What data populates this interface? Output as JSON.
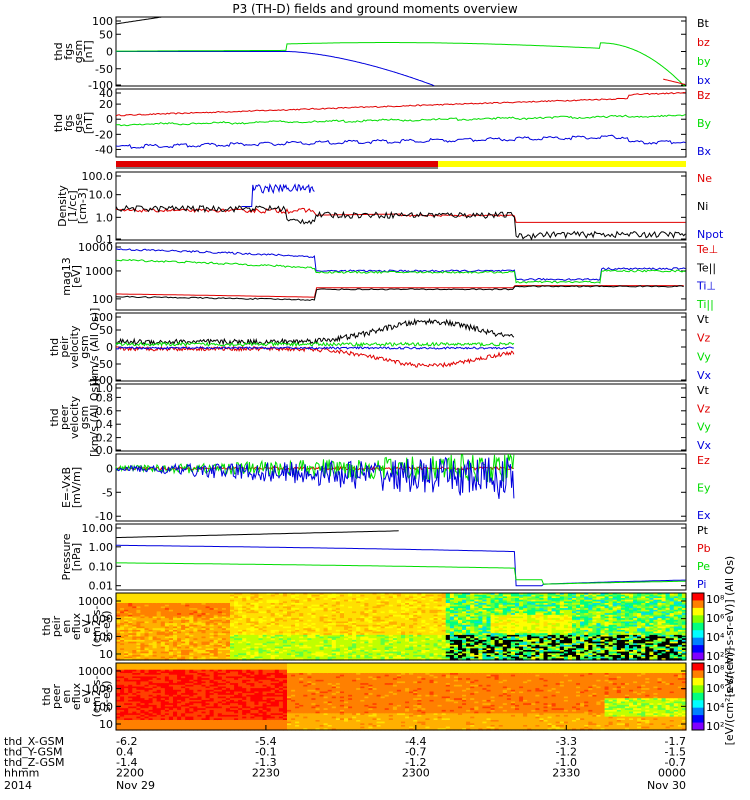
{
  "title": "P3 (TH-D) fields and ground moments overview",
  "colors": {
    "black": "#000000",
    "red": "#e00000",
    "green": "#00dd00",
    "blue": "#0000dd",
    "yellow": "#ffff00"
  },
  "chart_data": [
    {
      "type": "line",
      "id": "fgs_gsm",
      "ylabel": [
        "thd",
        "fgs",
        "gsm",
        "[nT]"
      ],
      "yticks": [
        "100",
        "50",
        "0",
        "-50",
        "-100"
      ],
      "ylim": [
        -100,
        100
      ],
      "series": [
        {
          "name": "Bt",
          "color": "black"
        },
        {
          "name": "bz",
          "color": "red"
        },
        {
          "name": "by",
          "color": "green"
        },
        {
          "name": "bx",
          "color": "blue"
        }
      ]
    },
    {
      "type": "line",
      "id": "fgs_dsl",
      "ylabel": [
        "thd",
        "fgs",
        "gse",
        "[nT]"
      ],
      "yticks": [
        "40",
        "20",
        "0",
        "-20",
        "-40"
      ],
      "ylim": [
        -50,
        40
      ],
      "series": [
        {
          "name": "Bz",
          "color": "red"
        },
        {
          "name": "By",
          "color": "green"
        },
        {
          "name": "Bx",
          "color": "blue"
        }
      ]
    },
    {
      "type": "bar",
      "id": "mode_bar",
      "segments": [
        {
          "from": 0,
          "to": 0.565,
          "color": "red"
        },
        {
          "from": 0.565,
          "to": 1,
          "color": "yellow"
        }
      ]
    },
    {
      "type": "line",
      "id": "density",
      "ylabel": [
        "Density",
        "[1/cc]",
        "[cm-3]"
      ],
      "yticks": [
        "100.0",
        "10.0",
        "1.0",
        "0.1"
      ],
      "ylim": [
        0.1,
        100
      ],
      "log": true,
      "series": [
        {
          "name": "Ne",
          "color": "red"
        },
        {
          "name": "Ni",
          "color": "black"
        },
        {
          "name": "Npot",
          "color": "blue"
        }
      ]
    },
    {
      "type": "line",
      "id": "temperature",
      "ylabel": [
        "mag13",
        "[eV]"
      ],
      "yticks": [
        "10000",
        "1000",
        "100"
      ],
      "ylim": [
        40,
        10000
      ],
      "log": true,
      "series": [
        {
          "name": "Te⊥",
          "color": "red"
        },
        {
          "name": "Te||",
          "color": "black"
        },
        {
          "name": "Ti⊥",
          "color": "blue"
        },
        {
          "name": "Ti||",
          "color": "green"
        }
      ]
    },
    {
      "type": "line",
      "id": "peir_vel",
      "ylabel": [
        "thd",
        "peir",
        "velocity",
        "gsm",
        "[km/s (All Qs)]"
      ],
      "yticks": [
        "100",
        "50",
        "0",
        "-50",
        "-100"
      ],
      "ylim": [
        -100,
        100
      ],
      "series": [
        {
          "name": "Vt",
          "color": "black"
        },
        {
          "name": "Vz",
          "color": "red"
        },
        {
          "name": "Vy",
          "color": "green"
        },
        {
          "name": "Vx",
          "color": "blue"
        }
      ]
    },
    {
      "type": "line",
      "id": "peer_vel",
      "ylabel": [
        "thd",
        "peer",
        "velocity",
        "gsm",
        "[km/s (All Qs)]"
      ],
      "yticks": [
        "1.0",
        "0.8",
        "0.6",
        "0.4",
        "0.2",
        "0.0"
      ],
      "ylim": [
        0,
        1
      ],
      "series": [
        {
          "name": "Vt",
          "color": "black"
        },
        {
          "name": "Vz",
          "color": "red"
        },
        {
          "name": "Vy",
          "color": "green"
        },
        {
          "name": "Vx",
          "color": "blue"
        }
      ]
    },
    {
      "type": "line",
      "id": "efield",
      "ylabel": [
        "E=-VxB",
        "[mV/m]"
      ],
      "yticks": [
        "0",
        "-5",
        "-10"
      ],
      "ylim": [
        -11,
        3
      ],
      "series": [
        {
          "name": "Ez",
          "color": "red"
        },
        {
          "name": "Ey",
          "color": "green"
        },
        {
          "name": "Ex",
          "color": "blue"
        }
      ]
    },
    {
      "type": "line",
      "id": "pressure",
      "ylabel": [
        "Pressure",
        "[nPa]"
      ],
      "yticks": [
        "10.00",
        "1.00",
        "0.10",
        "0.01"
      ],
      "ylim": [
        0.006,
        15
      ],
      "log": true,
      "series": [
        {
          "name": "Pt",
          "color": "black"
        },
        {
          "name": "Pb",
          "color": "red"
        },
        {
          "name": "Pe",
          "color": "green"
        },
        {
          "name": "Pi",
          "color": "blue"
        }
      ]
    },
    {
      "type": "heatmap",
      "id": "peir_spec",
      "ylabel": [
        "thd",
        "peir",
        "en",
        "eflux",
        "eV",
        "(cm2-s-",
        "sr-eV)"
      ],
      "yticks": [
        "10000",
        "1000",
        "100",
        "10"
      ],
      "colorbar": {
        "ticks": [
          "10⁸",
          "10⁶",
          "10⁴",
          "10²"
        ],
        "label": "[eV/(cm²-s-sr-eV)] (All Qs)"
      }
    },
    {
      "type": "heatmap",
      "id": "peer_spec",
      "ylabel": [
        "thd",
        "peer",
        "en",
        "eflux",
        "eV",
        "(cm2-s-",
        "sr-eV)"
      ],
      "yticks": [
        "10000",
        "1000",
        "100",
        "10"
      ],
      "colorbar": {
        "ticks": [
          "10⁸",
          "10⁶",
          "10⁴",
          "10²"
        ],
        "label": "[eV/(cm²-s-sr-eV)]"
      }
    }
  ],
  "xaxis": {
    "rows": [
      {
        "label": "thd_X-GSM",
        "values": [
          "-6.2",
          "-5.4",
          "-4.4",
          "-3.3",
          "-1.7"
        ]
      },
      {
        "label": "thd_Y-GSM",
        "values": [
          "0.4",
          "-0.1",
          "-0.7",
          "-1.2",
          "-1.5"
        ]
      },
      {
        "label": "thd_Z-GSM",
        "values": [
          "-1.4",
          "-1.3",
          "-1.2",
          "-1.0",
          "-0.7"
        ]
      },
      {
        "label": "hhmm",
        "values": [
          "2200",
          "2230",
          "2300",
          "2330",
          "0000"
        ]
      }
    ],
    "year": "2014",
    "dates": [
      "Nov 29",
      "Nov 30"
    ]
  }
}
